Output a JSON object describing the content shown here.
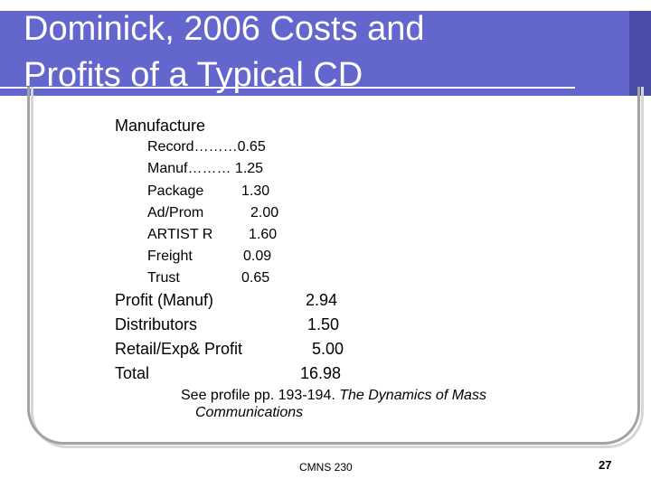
{
  "slide": {
    "title_line1": "Dominick, 2006 Costs and",
    "title_line2": "Profits of a Typical CD",
    "heading": "Manufacture",
    "manufacture_items": [
      {
        "label": "Record………",
        "value": "0.65"
      },
      {
        "label": "Manuf……… ",
        "value": "1.25"
      },
      {
        "label": "Package",
        "value": "1.30"
      },
      {
        "label": "Ad/Prom",
        "value": "2.00"
      },
      {
        "label": "ARTIST R",
        "value": "1.60"
      },
      {
        "label": "Freight",
        "value": "0.09"
      },
      {
        "label": "Trust",
        "value": "0.65"
      }
    ],
    "summary_items": [
      {
        "label": "Profit (Manuf)",
        "value": "2.94"
      },
      {
        "label": "Distributors",
        "value": "1.50"
      },
      {
        "label": "Retail/Exp& Profit",
        "value": "5.00"
      },
      {
        "label": "Total",
        "value": "16.98"
      }
    ],
    "note_prefix": "See profile pp. 193-194. ",
    "note_italic_1": "The Dynamics of Mass",
    "note_italic_2": "Communications",
    "footer": "CMNS 230",
    "page_number": "27"
  }
}
